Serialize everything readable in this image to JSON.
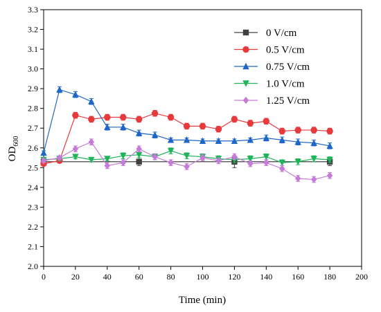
{
  "chart_data": {
    "type": "line",
    "title": "",
    "xlabel": "Time (min)",
    "ylabel": {
      "main": "OD",
      "sub": "600"
    },
    "xlim": [
      0,
      200
    ],
    "ylim": [
      2.0,
      3.3
    ],
    "xticks": [
      "0",
      "20",
      "40",
      "60",
      "80",
      "100",
      "120",
      "140",
      "160",
      "180",
      "200"
    ],
    "yticks": [
      "2.0",
      "2.1",
      "2.2",
      "2.3",
      "2.4",
      "2.5",
      "2.6",
      "2.7",
      "2.8",
      "2.9",
      "3.0",
      "3.1",
      "3.2",
      "3.3"
    ],
    "grid": false,
    "legend_position": "top-right",
    "series": [
      {
        "name": "0 V/cm",
        "color": "#404040",
        "marker": "square",
        "x": [
          0,
          60,
          120,
          180
        ],
        "y": [
          2.53,
          2.53,
          2.53,
          2.53
        ],
        "err": [
          0.01,
          0.02,
          0.03,
          0.02
        ]
      },
      {
        "name": "0.5 V/cm",
        "color": "#e8393c",
        "marker": "circle",
        "x": [
          0,
          10,
          20,
          30,
          40,
          50,
          60,
          70,
          80,
          90,
          100,
          110,
          120,
          130,
          140,
          150,
          160,
          170,
          180
        ],
        "y": [
          2.52,
          2.535,
          2.765,
          2.745,
          2.755,
          2.755,
          2.745,
          2.775,
          2.755,
          2.71,
          2.71,
          2.695,
          2.745,
          2.725,
          2.735,
          2.685,
          2.69,
          2.69,
          2.685
        ],
        "err": [
          0.01,
          0.01,
          0.015,
          0.015,
          0.015,
          0.015,
          0.015,
          0.015,
          0.015,
          0.015,
          0.015,
          0.015,
          0.015,
          0.015,
          0.015,
          0.015,
          0.015,
          0.015,
          0.015
        ]
      },
      {
        "name": "0.75 V/cm",
        "color": "#1e66c8",
        "marker": "triangle-up",
        "x": [
          0,
          10,
          20,
          30,
          40,
          50,
          60,
          70,
          80,
          90,
          100,
          110,
          120,
          130,
          140,
          150,
          160,
          170,
          180
        ],
        "y": [
          2.575,
          2.895,
          2.87,
          2.835,
          2.705,
          2.705,
          2.675,
          2.665,
          2.64,
          2.64,
          2.635,
          2.635,
          2.635,
          2.64,
          2.65,
          2.64,
          2.63,
          2.625,
          2.61
        ],
        "err": [
          0.01,
          0.015,
          0.015,
          0.015,
          0.015,
          0.015,
          0.015,
          0.015,
          0.01,
          0.01,
          0.01,
          0.01,
          0.01,
          0.01,
          0.015,
          0.015,
          0.015,
          0.015,
          0.015
        ]
      },
      {
        "name": "1.0 V/cm",
        "color": "#1fb45a",
        "marker": "triangle-down",
        "x": [
          0,
          10,
          20,
          30,
          40,
          50,
          60,
          70,
          80,
          90,
          100,
          110,
          120,
          130,
          140,
          150,
          160,
          170,
          180
        ],
        "y": [
          2.54,
          2.545,
          2.555,
          2.54,
          2.545,
          2.56,
          2.565,
          2.555,
          2.585,
          2.56,
          2.555,
          2.545,
          2.54,
          2.545,
          2.555,
          2.525,
          2.53,
          2.545,
          2.54
        ],
        "err": [
          0.01,
          0.01,
          0.01,
          0.01,
          0.01,
          0.015,
          0.015,
          0.015,
          0.015,
          0.015,
          0.015,
          0.015,
          0.015,
          0.015,
          0.015,
          0.015,
          0.015,
          0.015,
          0.015
        ]
      },
      {
        "name": "1.25 V/cm",
        "color": "#c67ad8",
        "marker": "diamond",
        "x": [
          0,
          10,
          20,
          30,
          40,
          50,
          60,
          70,
          80,
          90,
          100,
          110,
          120,
          130,
          140,
          150,
          160,
          170,
          180
        ],
        "y": [
          2.535,
          2.55,
          2.595,
          2.63,
          2.51,
          2.525,
          2.595,
          2.555,
          2.525,
          2.505,
          2.55,
          2.535,
          2.555,
          2.52,
          2.525,
          2.495,
          2.445,
          2.44,
          2.46
        ],
        "err": [
          0.01,
          0.01,
          0.015,
          0.015,
          0.015,
          0.015,
          0.015,
          0.015,
          0.015,
          0.015,
          0.015,
          0.015,
          0.015,
          0.015,
          0.015,
          0.015,
          0.015,
          0.015,
          0.015
        ]
      }
    ]
  }
}
